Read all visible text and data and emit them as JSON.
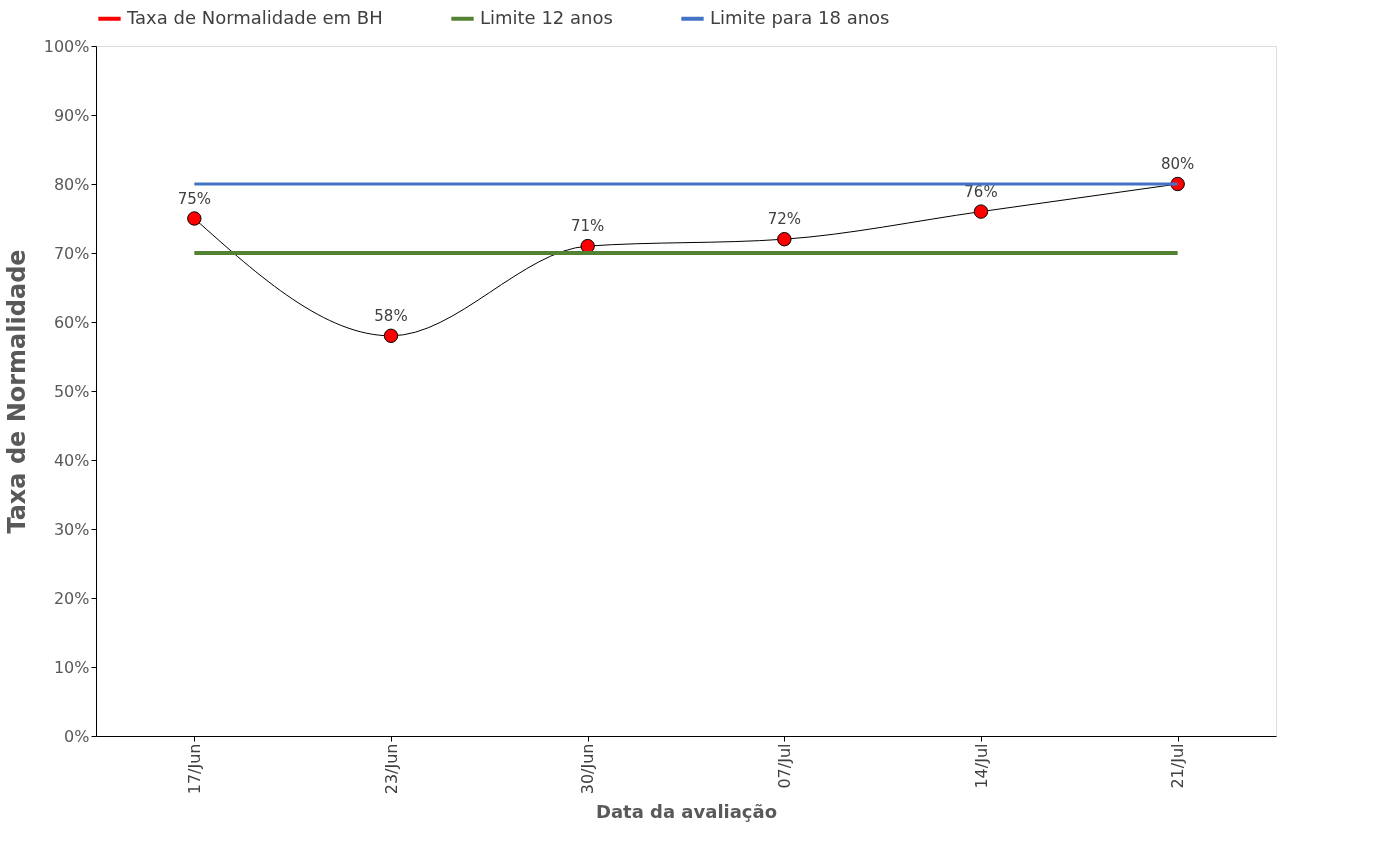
{
  "chart_data": {
    "type": "line",
    "xlabel": "Data da avaliação",
    "ylabel": "Taxa de Normalidade",
    "categories": [
      "17/Jun",
      "23/Jun",
      "30/Jun",
      "07/Jul",
      "14/Jul",
      "21/Jul"
    ],
    "series": [
      {
        "name": "Taxa de Normalidade em BH",
        "color": "#ff0000",
        "marker": "circle",
        "values": [
          75,
          58,
          71,
          72,
          76,
          80
        ],
        "value_labels": [
          "75%",
          "58%",
          "71%",
          "72%",
          "76%",
          "80%"
        ]
      },
      {
        "name": "Limite 12 anos",
        "color": "#548235",
        "marker": "none",
        "values": [
          70,
          70,
          70,
          70,
          70,
          70
        ]
      },
      {
        "name": "Limite para 18 anos",
        "color": "#4472c4",
        "marker": "none",
        "values": [
          80,
          80,
          80,
          80,
          80,
          80
        ]
      }
    ],
    "ylim": [
      0,
      100
    ],
    "yticks": [
      {
        "value": 0,
        "label": "0%"
      },
      {
        "value": 10,
        "label": "10%"
      },
      {
        "value": 20,
        "label": "20%"
      },
      {
        "value": 30,
        "label": "30%"
      },
      {
        "value": 40,
        "label": "40%"
      },
      {
        "value": 50,
        "label": "50%"
      },
      {
        "value": 60,
        "label": "60%"
      },
      {
        "value": 70,
        "label": "70%"
      },
      {
        "value": 80,
        "label": "80%"
      },
      {
        "value": 90,
        "label": "90%"
      },
      {
        "value": 100,
        "label": "100%"
      }
    ],
    "grid": false,
    "legend": "top",
    "line_style": "solid"
  }
}
